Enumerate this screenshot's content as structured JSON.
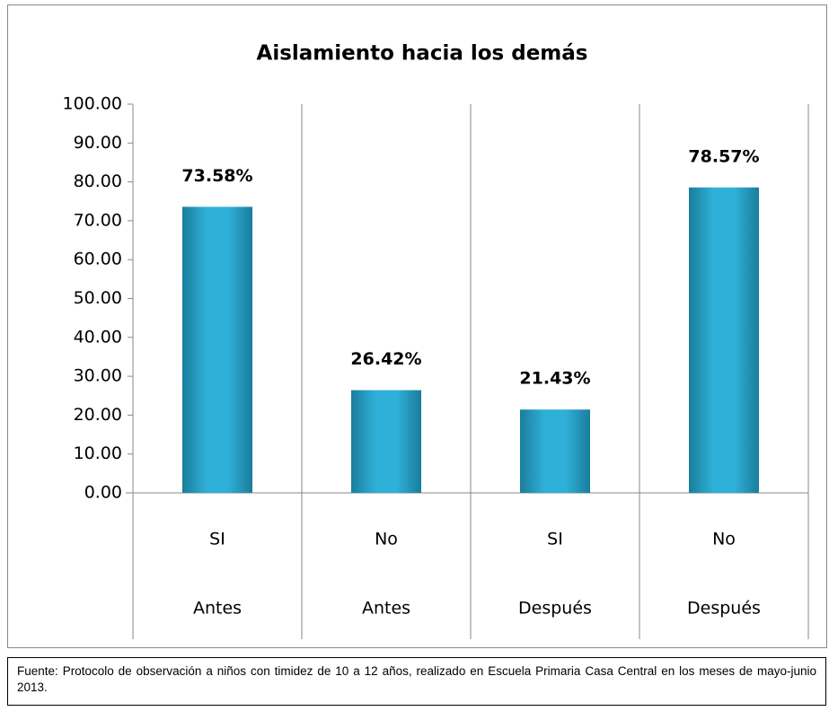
{
  "chart_data": {
    "type": "bar",
    "title": "Aislamiento hacia los demás",
    "categories": [
      "SI",
      "No",
      "SI",
      "No"
    ],
    "groups": [
      "Antes",
      "Antes",
      "Después",
      "Después"
    ],
    "values": [
      73.58,
      26.42,
      21.43,
      78.57
    ],
    "value_labels": [
      "73.58%",
      "26.42%",
      "21.43%",
      "78.57%"
    ],
    "color": "#2fb0d8",
    "ylim": [
      0,
      100
    ],
    "yticks": [
      {
        "value": 0,
        "label": "0.00"
      },
      {
        "value": 10,
        "label": "10.00"
      },
      {
        "value": 20,
        "label": "20.00"
      },
      {
        "value": 30,
        "label": "30.00"
      },
      {
        "value": 40,
        "label": "40.00"
      },
      {
        "value": 50,
        "label": "50.00"
      },
      {
        "value": 60,
        "label": "60.00"
      },
      {
        "value": 70,
        "label": "70.00"
      },
      {
        "value": 80,
        "label": "80.00"
      },
      {
        "value": 90,
        "label": "90.00"
      },
      {
        "value": 100,
        "label": "100.00"
      }
    ],
    "grid": false
  },
  "source": "Fuente: Protocolo de observación a niños con timidez de 10 a 12 años, realizado en Escuela Primaria Casa Central en los meses de mayo-junio 2013."
}
